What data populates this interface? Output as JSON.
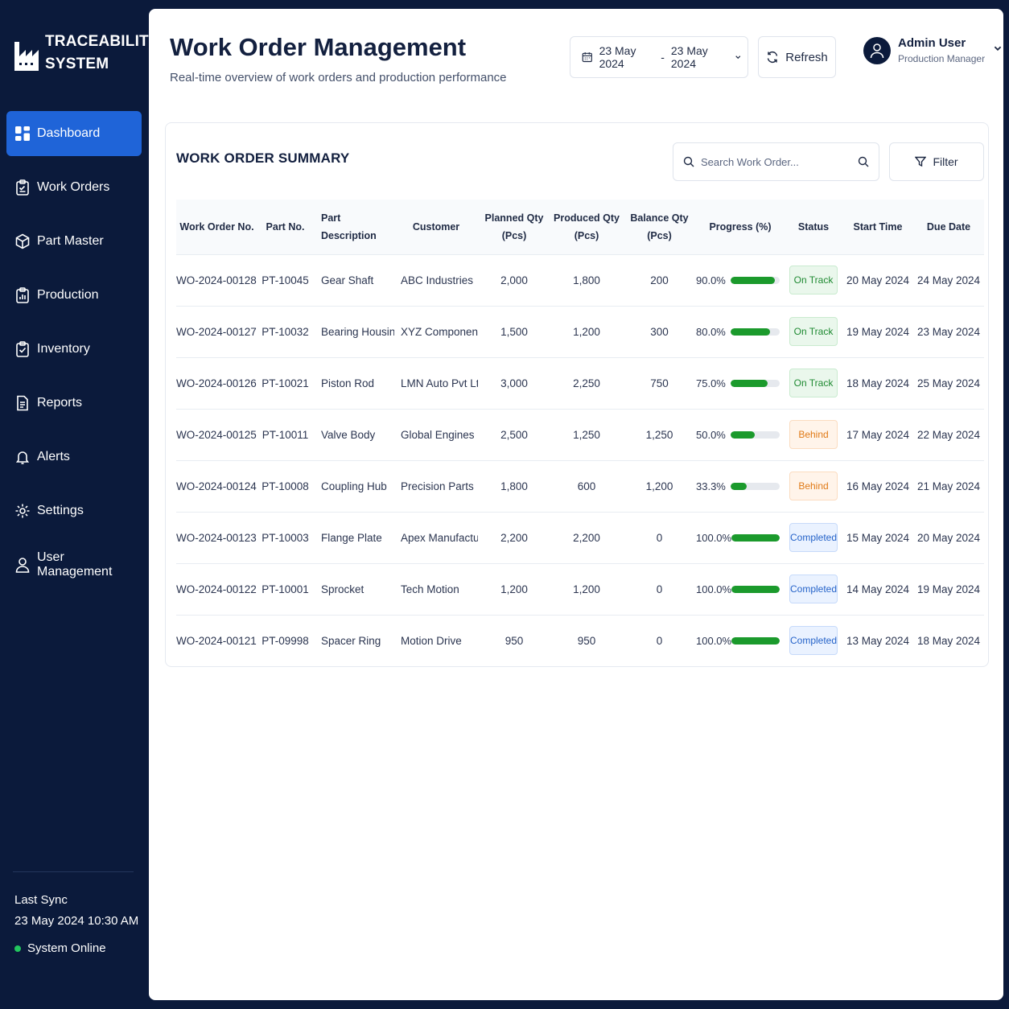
{
  "brand": {
    "line1": "TRACEABILITY",
    "line2": "SYSTEM"
  },
  "nav": [
    {
      "label": "Dashboard",
      "icon": "dashboard-icon",
      "active": true
    },
    {
      "label": "Work Orders",
      "icon": "clipboard-icon"
    },
    {
      "label": "Part Master",
      "icon": "cube-icon"
    },
    {
      "label": "Production",
      "icon": "production-icon"
    },
    {
      "label": "Inventory",
      "icon": "inventory-icon"
    },
    {
      "label": "Reports",
      "icon": "report-icon"
    },
    {
      "label": "Alerts",
      "icon": "bell-icon"
    },
    {
      "label": "Settings",
      "icon": "gear-icon"
    },
    {
      "label": "User Management",
      "icon": "user-icon"
    }
  ],
  "sync": {
    "label": "Last Sync",
    "value": "23 May 2024 10:30 AM",
    "status": "System Online"
  },
  "header": {
    "title": "Work Order Management",
    "subtitle": "Real-time overview of work orders and production performance",
    "date_from": "23 May 2024",
    "date_sep": "-",
    "date_to": "23 May 2024",
    "refresh": "Refresh",
    "user_name": "Admin User",
    "user_role": "Production Manager"
  },
  "summary": {
    "title": "WORK ORDER SUMMARY",
    "search_placeholder": "Search Work Order...",
    "filter": "Filter",
    "columns": {
      "wo": "Work Order No.",
      "part": "Part No.",
      "desc": "Part Description",
      "customer": "Customer",
      "planned1": "Planned Qty",
      "planned2": "(Pcs)",
      "produced1": "Produced Qty",
      "produced2": "(Pcs)",
      "balance1": "Balance Qty",
      "balance2": "(Pcs)",
      "progress": "Progress (%)",
      "status": "Status",
      "start": "Start Time",
      "due": "Due Date"
    },
    "rows": [
      {
        "wo": "WO-2024-00128",
        "part": "PT-10045",
        "desc": "Gear Shaft",
        "customer": "ABC Industries",
        "planned": "2,000",
        "produced": "1,800",
        "balance": "200",
        "progress_label": "90.0%",
        "progress": 90,
        "status": "On Track",
        "status_kind": "on",
        "start": "20 May 2024",
        "due": "24 May 2024"
      },
      {
        "wo": "WO-2024-00127",
        "part": "PT-10032",
        "desc": "Bearing Housing",
        "customer": "XYZ Components",
        "planned": "1,500",
        "produced": "1,200",
        "balance": "300",
        "progress_label": "80.0%",
        "progress": 80,
        "status": "On Track",
        "status_kind": "on",
        "start": "19 May 2024",
        "due": "23 May 2024"
      },
      {
        "wo": "WO-2024-00126",
        "part": "PT-10021",
        "desc": "Piston Rod",
        "customer": "LMN Auto Pvt Ltd",
        "planned": "3,000",
        "produced": "2,250",
        "balance": "750",
        "progress_label": "75.0%",
        "progress": 75,
        "status": "On Track",
        "status_kind": "on",
        "start": "18 May 2024",
        "due": "25 May 2024"
      },
      {
        "wo": "WO-2024-00125",
        "part": "PT-10011",
        "desc": "Valve Body",
        "customer": "Global Engines",
        "planned": "2,500",
        "produced": "1,250",
        "balance": "1,250",
        "progress_label": "50.0%",
        "progress": 50,
        "status": "Behind",
        "status_kind": "behind",
        "start": "17 May 2024",
        "due": "22 May 2024"
      },
      {
        "wo": "WO-2024-00124",
        "part": "PT-10008",
        "desc": "Coupling Hub",
        "customer": "Precision Parts",
        "planned": "1,800",
        "produced": "600",
        "balance": "1,200",
        "progress_label": "33.3%",
        "progress": 33.3,
        "status": "Behind",
        "status_kind": "behind",
        "start": "16 May 2024",
        "due": "21 May 2024"
      },
      {
        "wo": "WO-2024-00123",
        "part": "PT-10003",
        "desc": "Flange Plate",
        "customer": "Apex Manufacturing",
        "planned": "2,200",
        "produced": "2,200",
        "balance": "0",
        "progress_label": "100.0%",
        "progress": 100,
        "status": "Completed",
        "status_kind": "done",
        "start": "15 May 2024",
        "due": "20 May 2024"
      },
      {
        "wo": "WO-2024-00122",
        "part": "PT-10001",
        "desc": "Sprocket",
        "customer": "Tech Motion",
        "planned": "1,200",
        "produced": "1,200",
        "balance": "0",
        "progress_label": "100.0%",
        "progress": 100,
        "status": "Completed",
        "status_kind": "done",
        "start": "14 May 2024",
        "due": "19 May 2024"
      },
      {
        "wo": "WO-2024-00121",
        "part": "PT-09998",
        "desc": "Spacer Ring",
        "customer": "Motion Drive",
        "planned": "950",
        "produced": "950",
        "balance": "0",
        "progress_label": "100.0%",
        "progress": 100,
        "status": "Completed",
        "status_kind": "done",
        "start": "13 May 2024",
        "due": "18 May 2024"
      }
    ]
  },
  "colors": {
    "sidebar": "#0b1a3b",
    "accent": "#1f64d8",
    "progress": "#1b9a2c",
    "on_track": "#1f8a32",
    "behind": "#e07a17",
    "completed": "#2563c9"
  }
}
